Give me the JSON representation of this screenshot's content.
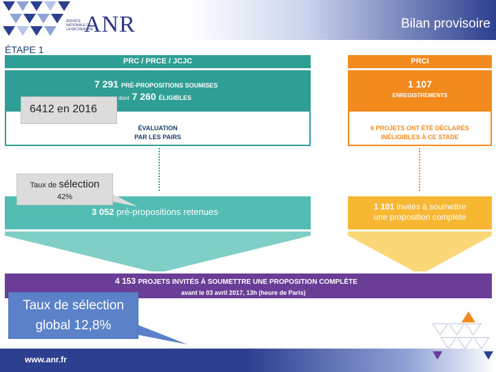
{
  "header": {
    "logo_text": "ANR",
    "logo_small": "AGENCE NATIONALE DE LA RECHERCHE",
    "title": "Bilan provisoire"
  },
  "step_label": "ÉTAPE 1",
  "teal_column": {
    "heading": "PRC / PRCE / JCJC",
    "count": "7 291",
    "count_label": "PRÉ-PROPOSITIONS SOUMISES",
    "eligible_prefix": "dont",
    "eligible_count": "7 260",
    "eligible_label": "ÉLIGIBLES",
    "evaluation_line1": "ÉVALUATION",
    "evaluation_line2": "PAR LES PAIRS",
    "result_count": "3 052",
    "result_label": "pré-propositions retenues"
  },
  "orange_column": {
    "heading": "PRCI",
    "count": "1 107",
    "count_label": "ENREGISTREMENTS",
    "note_line1": "6 PROJETS ONT ÉTÉ DÉCLARÉS",
    "note_line2": "INÉLIGIBLES À CE STADE",
    "result_count": "1 101",
    "result_label_line1": "invités à soumettre",
    "result_label_line2": "une proposition complète"
  },
  "purple_band": {
    "count": "4 153",
    "label": "PROJETS INVITÉS À SOUMETTRE UNE PROPOSITION COMPLÈTE",
    "deadline": "avant le 03 avril 2017, 13h (heure de Paris)"
  },
  "callouts": {
    "prior_year": "6412 en 2016",
    "selection_prefix": "Taux de",
    "selection_word": "sélection",
    "selection_rate": "42%",
    "global_line1": "Taux de sélection",
    "global_line2": "global 12,8%"
  },
  "footer": {
    "url": "www.anr.fr"
  },
  "colors": {
    "teal": "#2f9e94",
    "teal_light": "#53bdb3",
    "orange": "#f28a1e",
    "yellow": "#f7b732",
    "purple": "#6a3d96",
    "navy": "#2d3f8f",
    "callout_blue": "#5b82c9"
  }
}
